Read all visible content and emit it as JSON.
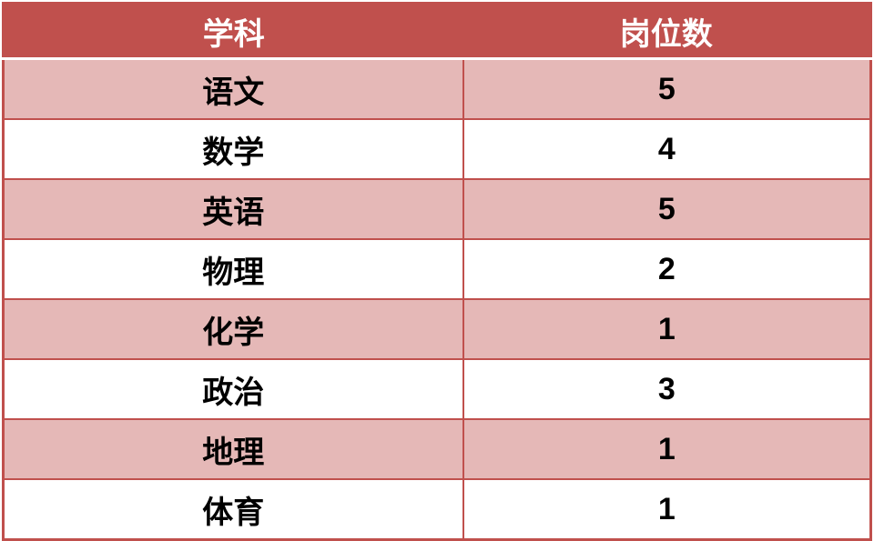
{
  "table": {
    "name": "subject-positions-table",
    "columns": [
      {
        "key": "subject",
        "label": "学科"
      },
      {
        "key": "count",
        "label": "岗位数"
      }
    ],
    "rows": [
      {
        "subject": "语文",
        "count": "5"
      },
      {
        "subject": "数学",
        "count": "4"
      },
      {
        "subject": "英语",
        "count": "5"
      },
      {
        "subject": "物理",
        "count": "2"
      },
      {
        "subject": "化学",
        "count": "1"
      },
      {
        "subject": "政治",
        "count": "3"
      },
      {
        "subject": "地理",
        "count": "1"
      },
      {
        "subject": "体育",
        "count": "1"
      }
    ],
    "colors": {
      "header_bg": "#C0504D",
      "header_text": "#FFFFFF",
      "row_alt_bg": "#E5B8B7",
      "row_bg": "#FFFFFF",
      "border": "#C0504D",
      "body_text": "#000000"
    }
  }
}
